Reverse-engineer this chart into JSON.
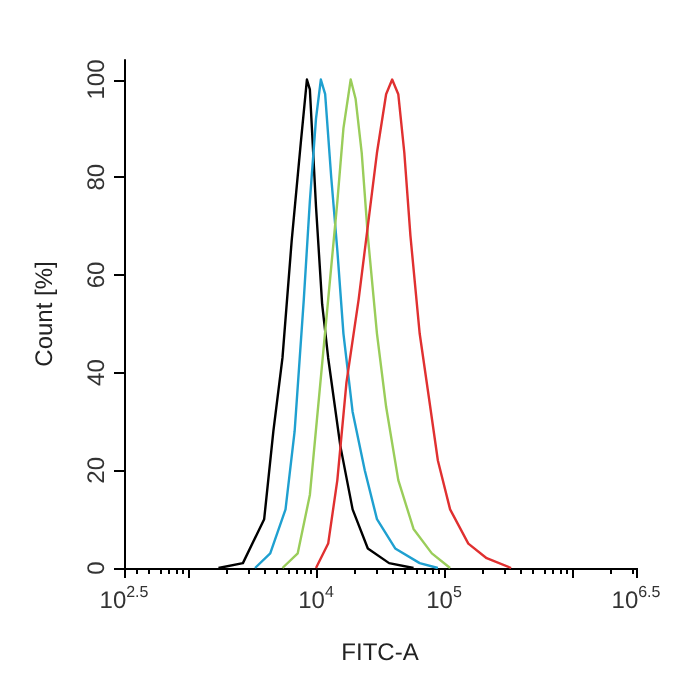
{
  "chart_data": {
    "type": "line",
    "xlabel": "FITC-A",
    "ylabel": "Count [%]",
    "log": "x",
    "grid": false,
    "marker": "none",
    "line_style": "solid",
    "xlim": [
      316.2278,
      3162277.66
    ],
    "xticks": [
      {
        "value": 316.2278,
        "label": "10$^{2.5}$"
      },
      {
        "value": 1000,
        "label": null
      },
      {
        "value": 10000,
        "label": "10$^{4}$"
      },
      {
        "value": 100000,
        "label": "10$^{5}$"
      },
      {
        "value": 1000000,
        "label": null
      },
      {
        "value": 3162277.66,
        "label": "10$^{6.5}$"
      }
    ],
    "ylim": [
      0,
      104
    ],
    "yticks": [
      0,
      20,
      40,
      60,
      80,
      100
    ],
    "series": [
      {
        "color": "#000000",
        "x": [
          1730,
          2685,
          3936,
          4645,
          5470,
          6457,
          7603,
          8492,
          8954,
          10000,
          11170,
          12450,
          15490,
          19320,
          25410,
          37240,
          57810
        ],
        "values": [
          0,
          1,
          10,
          28,
          43,
          67,
          87,
          100,
          98,
          74,
          54,
          43,
          25,
          12,
          4,
          1,
          0
        ]
      },
      {
        "color": "#1fa0d0",
        "x": [
          3340,
          4390,
          5780,
          6810,
          8030,
          8950,
          10000,
          10910,
          11790,
          13150,
          14680,
          16380,
          19310,
          24040,
          29940,
          41560,
          64560,
          89550
        ],
        "values": [
          0,
          3,
          12,
          28,
          55,
          75,
          92,
          100,
          97,
          80,
          65,
          48,
          32,
          20,
          10,
          4,
          1,
          0
        ]
      },
      {
        "color": "#9acd5a",
        "x": [
          5470,
          7200,
          8960,
          10560,
          12450,
          14680,
          16380,
          18670,
          20400,
          22760,
          25400,
          29940,
          35300,
          43940,
          57800,
          80350,
          111600
        ],
        "values": [
          0,
          3,
          15,
          35,
          55,
          75,
          90,
          100,
          96,
          85,
          68,
          48,
          33,
          18,
          8,
          3,
          0
        ]
      },
      {
        "color": "#e03030",
        "x": [
          10000,
          12450,
          14680,
          17300,
          21540,
          25400,
          29940,
          35300,
          39360,
          43940,
          48990,
          54680,
          64560,
          76100,
          89550,
          111600,
          154900,
          215400,
          334300
        ],
        "values": [
          0,
          5,
          18,
          38,
          55,
          70,
          85,
          97,
          100,
          97,
          85,
          68,
          48,
          35,
          22,
          12,
          5,
          2,
          0
        ]
      }
    ]
  }
}
